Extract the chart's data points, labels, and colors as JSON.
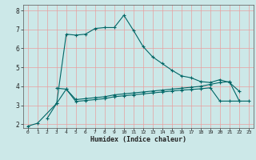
{
  "xlabel": "Humidex (Indice chaleur)",
  "bg_color": "#cce8e8",
  "grid_color": "#e8a0a0",
  "line_color": "#006666",
  "ylim": [
    1.8,
    8.3
  ],
  "xlim": [
    -0.5,
    23.5
  ],
  "yticks": [
    2,
    3,
    4,
    5,
    6,
    7,
    8
  ],
  "xticks": [
    0,
    1,
    2,
    3,
    4,
    5,
    6,
    7,
    8,
    9,
    10,
    11,
    12,
    13,
    14,
    15,
    16,
    17,
    18,
    19,
    20,
    21,
    22,
    23
  ],
  "line1_y": [
    null,
    null,
    2.3,
    3.1,
    6.75,
    6.7,
    6.75,
    7.05,
    7.1,
    7.1,
    7.75,
    6.95,
    6.1,
    5.55,
    5.2,
    4.85,
    4.55,
    4.45,
    4.25,
    4.2,
    4.35,
    4.2,
    3.75,
    null
  ],
  "line2_y": [
    null,
    null,
    null,
    3.9,
    3.85,
    3.3,
    3.35,
    3.4,
    3.45,
    3.55,
    3.6,
    3.65,
    3.7,
    3.75,
    3.8,
    3.85,
    3.9,
    3.95,
    4.0,
    4.1,
    4.2,
    4.25,
    3.25,
    null
  ],
  "line3_y": [
    1.9,
    2.05,
    null,
    3.1,
    3.85,
    3.2,
    3.25,
    3.3,
    3.35,
    3.45,
    3.5,
    3.55,
    3.6,
    3.65,
    3.7,
    3.75,
    3.8,
    3.83,
    3.87,
    3.92,
    3.22,
    3.22,
    3.22,
    3.22
  ]
}
